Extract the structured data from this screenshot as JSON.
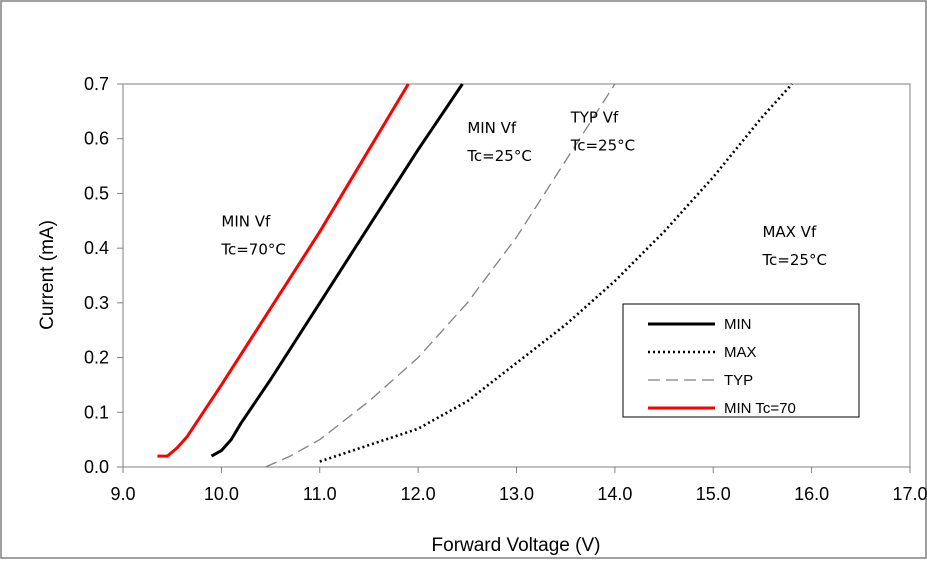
{
  "chart_data": {
    "type": "line",
    "title": "",
    "xlabel": "Forward Voltage (V)",
    "ylabel": "Current (mA)",
    "xlim": [
      9.0,
      17.0
    ],
    "ylim": [
      0.0,
      0.7
    ],
    "x_ticks": [
      "9.0",
      "10.0",
      "11.0",
      "12.0",
      "13.0",
      "14.0",
      "15.0",
      "16.0",
      "17.0"
    ],
    "y_ticks": [
      "0.0",
      "0.1",
      "0.2",
      "0.3",
      "0.4",
      "0.5",
      "0.6",
      "0.7"
    ],
    "grid": false,
    "legend_position": "bottom-right",
    "series": [
      {
        "name": "MIN",
        "color": "#000000",
        "style": "solid",
        "x": [
          9.9,
          10.0,
          10.1,
          10.2,
          10.5,
          11.0,
          11.5,
          12.0,
          12.45
        ],
        "y": [
          0.02,
          0.03,
          0.05,
          0.08,
          0.16,
          0.3,
          0.44,
          0.58,
          0.7
        ]
      },
      {
        "name": "MAX",
        "color": "#000000",
        "style": "dotted",
        "x": [
          11.0,
          11.5,
          12.0,
          12.5,
          13.0,
          13.5,
          14.0,
          14.5,
          15.0,
          15.5,
          15.8
        ],
        "y": [
          0.01,
          0.04,
          0.07,
          0.12,
          0.19,
          0.26,
          0.34,
          0.43,
          0.53,
          0.64,
          0.7
        ]
      },
      {
        "name": "TYP",
        "color": "#808080",
        "style": "dashed",
        "x": [
          10.45,
          10.7,
          11.0,
          11.5,
          12.0,
          12.5,
          13.0,
          13.5,
          14.0
        ],
        "y": [
          0.0,
          0.02,
          0.05,
          0.12,
          0.2,
          0.3,
          0.42,
          0.56,
          0.7
        ]
      },
      {
        "name": "MIN Tc=70",
        "color": "#ff0000",
        "style": "solid",
        "x": [
          9.35,
          9.45,
          9.55,
          9.65,
          10.0,
          10.5,
          11.0,
          11.5,
          11.9
        ],
        "y": [
          0.02,
          0.02,
          0.035,
          0.055,
          0.15,
          0.29,
          0.43,
          0.58,
          0.7
        ]
      }
    ],
    "annotations": [
      {
        "lines": [
          "MIN Vf",
          "Tc=70°C"
        ],
        "x": 10.0,
        "y": 0.44
      },
      {
        "lines": [
          "MIN Vf",
          "Tc=25°C"
        ],
        "x": 12.5,
        "y": 0.61
      },
      {
        "lines": [
          "TYP Vf",
          "Tc=25°C"
        ],
        "x": 13.55,
        "y": 0.63
      },
      {
        "lines": [
          "MAX Vf",
          "Tc=25°C"
        ],
        "x": 15.5,
        "y": 0.42
      }
    ]
  }
}
